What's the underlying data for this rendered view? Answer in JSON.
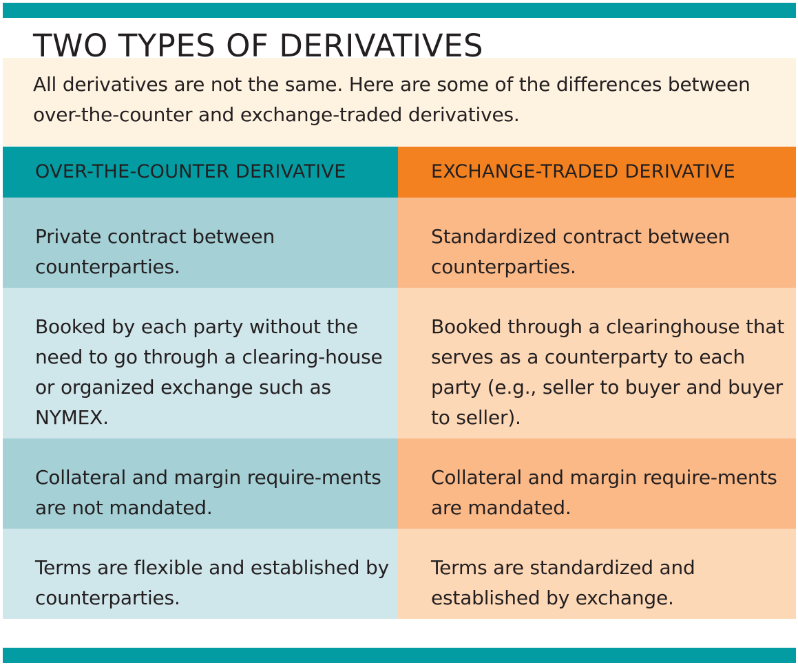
{
  "title": "TWO TYPES OF DERIVATIVES",
  "intro": "All derivatives are not the same. Here are some of the differences between over-the-counter and exchange-traded derivatives.",
  "colors": {
    "teal": "#039ca3",
    "orange": "#f48120",
    "teal_dark_row": "#a4d0d6",
    "teal_light_row": "#cfe6eb",
    "orange_dark_row": "#fbb988",
    "orange_light_row": "#fdd8b7",
    "intro_background": "#fef3e1"
  },
  "table": {
    "headers": [
      "OVER-THE-COUNTER DERIVATIVE",
      "EXCHANGE-TRADED DERIVATIVE"
    ],
    "rows": [
      {
        "otc": "Private contract between counterparties.",
        "exchange": "Standardized contract between counterparties."
      },
      {
        "otc": "Booked by each party without the need to go through a clearing-house or organized exchange such as NYMEX.",
        "exchange": "Booked through a clearinghouse that serves as a counterparty to each party (e.g., seller to buyer and buyer to seller)."
      },
      {
        "otc": "Collateral and margin require-ments are not mandated.",
        "exchange": "Collateral and margin require-ments are mandated."
      },
      {
        "otc": "Terms are flexible and established by counterparties.",
        "exchange": "Terms are standardized and established by exchange."
      }
    ]
  }
}
